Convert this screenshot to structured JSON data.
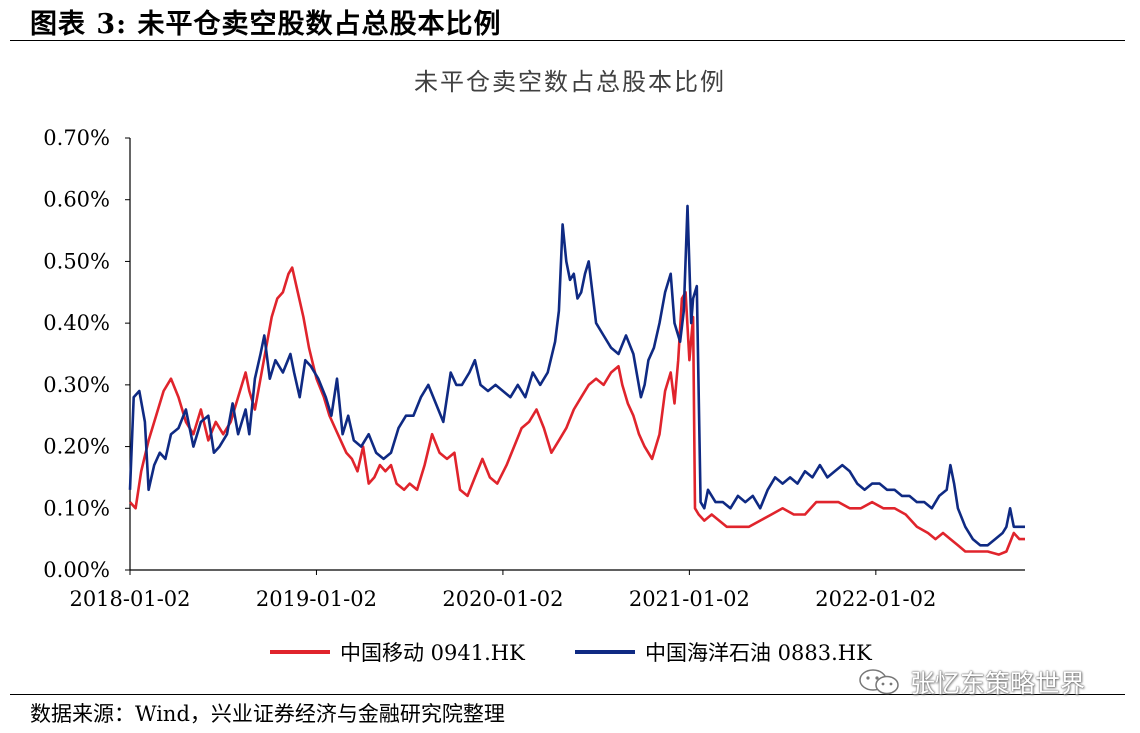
{
  "figure_label": "图表 3:  未平仓卖空股数占总股本比例",
  "source_note": "数据来源：Wind，兴业证券经济与金融研究院整理",
  "watermark": {
    "text": "张忆东策略世界",
    "icon": "wechat-icon"
  },
  "colors": {
    "series1": "#e0242c",
    "series2": "#0f2a83"
  },
  "chart_data": {
    "type": "line",
    "title": "未平仓卖空数占总股本比例",
    "xlabel": "",
    "ylabel": "",
    "x_ticks": [
      "2018-01-02",
      "2019-01-02",
      "2020-01-02",
      "2021-01-02",
      "2022-01-02"
    ],
    "x_range": [
      2018.0,
      2022.8
    ],
    "y_ticks": [
      "0.00%",
      "0.10%",
      "0.20%",
      "0.30%",
      "0.40%",
      "0.50%",
      "0.60%",
      "0.70%"
    ],
    "ylim": [
      0.0,
      0.7
    ],
    "grid": false,
    "legend_position": "bottom",
    "series": [
      {
        "name": "中国移动 0941.HK",
        "points": [
          [
            2018.0,
            0.11
          ],
          [
            2018.03,
            0.1
          ],
          [
            2018.06,
            0.16
          ],
          [
            2018.1,
            0.21
          ],
          [
            2018.14,
            0.25
          ],
          [
            2018.18,
            0.29
          ],
          [
            2018.22,
            0.31
          ],
          [
            2018.26,
            0.28
          ],
          [
            2018.3,
            0.24
          ],
          [
            2018.34,
            0.22
          ],
          [
            2018.38,
            0.26
          ],
          [
            2018.42,
            0.21
          ],
          [
            2018.46,
            0.24
          ],
          [
            2018.5,
            0.22
          ],
          [
            2018.54,
            0.24
          ],
          [
            2018.58,
            0.28
          ],
          [
            2018.62,
            0.32
          ],
          [
            2018.64,
            0.29
          ],
          [
            2018.67,
            0.26
          ],
          [
            2018.7,
            0.31
          ],
          [
            2018.73,
            0.36
          ],
          [
            2018.76,
            0.41
          ],
          [
            2018.79,
            0.44
          ],
          [
            2018.82,
            0.45
          ],
          [
            2018.85,
            0.48
          ],
          [
            2018.87,
            0.49
          ],
          [
            2018.9,
            0.45
          ],
          [
            2018.93,
            0.41
          ],
          [
            2018.96,
            0.36
          ],
          [
            2019.0,
            0.31
          ],
          [
            2019.04,
            0.28
          ],
          [
            2019.07,
            0.25
          ],
          [
            2019.1,
            0.23
          ],
          [
            2019.13,
            0.21
          ],
          [
            2019.16,
            0.19
          ],
          [
            2019.19,
            0.18
          ],
          [
            2019.22,
            0.16
          ],
          [
            2019.25,
            0.2
          ],
          [
            2019.28,
            0.14
          ],
          [
            2019.31,
            0.15
          ],
          [
            2019.34,
            0.17
          ],
          [
            2019.37,
            0.16
          ],
          [
            2019.4,
            0.17
          ],
          [
            2019.43,
            0.14
          ],
          [
            2019.47,
            0.13
          ],
          [
            2019.5,
            0.14
          ],
          [
            2019.54,
            0.13
          ],
          [
            2019.58,
            0.17
          ],
          [
            2019.62,
            0.22
          ],
          [
            2019.66,
            0.19
          ],
          [
            2019.7,
            0.18
          ],
          [
            2019.74,
            0.19
          ],
          [
            2019.77,
            0.13
          ],
          [
            2019.81,
            0.12
          ],
          [
            2019.85,
            0.15
          ],
          [
            2019.89,
            0.18
          ],
          [
            2019.93,
            0.15
          ],
          [
            2019.97,
            0.14
          ],
          [
            2020.02,
            0.17
          ],
          [
            2020.06,
            0.2
          ],
          [
            2020.1,
            0.23
          ],
          [
            2020.14,
            0.24
          ],
          [
            2020.18,
            0.26
          ],
          [
            2020.22,
            0.23
          ],
          [
            2020.26,
            0.19
          ],
          [
            2020.3,
            0.21
          ],
          [
            2020.34,
            0.23
          ],
          [
            2020.38,
            0.26
          ],
          [
            2020.42,
            0.28
          ],
          [
            2020.46,
            0.3
          ],
          [
            2020.5,
            0.31
          ],
          [
            2020.54,
            0.3
          ],
          [
            2020.58,
            0.32
          ],
          [
            2020.62,
            0.33
          ],
          [
            2020.64,
            0.3
          ],
          [
            2020.67,
            0.27
          ],
          [
            2020.7,
            0.25
          ],
          [
            2020.73,
            0.22
          ],
          [
            2020.76,
            0.2
          ],
          [
            2020.8,
            0.18
          ],
          [
            2020.84,
            0.22
          ],
          [
            2020.87,
            0.29
          ],
          [
            2020.9,
            0.32
          ],
          [
            2020.92,
            0.27
          ],
          [
            2020.94,
            0.34
          ],
          [
            2020.96,
            0.44
          ],
          [
            2020.98,
            0.45
          ],
          [
            2021.0,
            0.34
          ],
          [
            2021.02,
            0.41
          ],
          [
            2021.03,
            0.1
          ],
          [
            2021.05,
            0.09
          ],
          [
            2021.08,
            0.08
          ],
          [
            2021.12,
            0.09
          ],
          [
            2021.16,
            0.08
          ],
          [
            2021.2,
            0.07
          ],
          [
            2021.26,
            0.07
          ],
          [
            2021.32,
            0.07
          ],
          [
            2021.38,
            0.08
          ],
          [
            2021.44,
            0.09
          ],
          [
            2021.5,
            0.1
          ],
          [
            2021.56,
            0.09
          ],
          [
            2021.62,
            0.09
          ],
          [
            2021.68,
            0.11
          ],
          [
            2021.74,
            0.11
          ],
          [
            2021.8,
            0.11
          ],
          [
            2021.86,
            0.1
          ],
          [
            2021.92,
            0.1
          ],
          [
            2021.98,
            0.11
          ],
          [
            2022.04,
            0.1
          ],
          [
            2022.1,
            0.1
          ],
          [
            2022.16,
            0.09
          ],
          [
            2022.22,
            0.07
          ],
          [
            2022.28,
            0.06
          ],
          [
            2022.32,
            0.05
          ],
          [
            2022.36,
            0.06
          ],
          [
            2022.4,
            0.05
          ],
          [
            2022.44,
            0.04
          ],
          [
            2022.48,
            0.03
          ],
          [
            2022.54,
            0.03
          ],
          [
            2022.6,
            0.03
          ],
          [
            2022.66,
            0.025
          ],
          [
            2022.7,
            0.03
          ],
          [
            2022.74,
            0.06
          ],
          [
            2022.77,
            0.05
          ],
          [
            2022.8,
            0.05
          ]
        ]
      },
      {
        "name": "中国海洋石油 0883.HK",
        "points": [
          [
            2018.0,
            0.13
          ],
          [
            2018.02,
            0.28
          ],
          [
            2018.05,
            0.29
          ],
          [
            2018.08,
            0.24
          ],
          [
            2018.1,
            0.13
          ],
          [
            2018.13,
            0.17
          ],
          [
            2018.16,
            0.19
          ],
          [
            2018.19,
            0.18
          ],
          [
            2018.22,
            0.22
          ],
          [
            2018.26,
            0.23
          ],
          [
            2018.3,
            0.26
          ],
          [
            2018.34,
            0.2
          ],
          [
            2018.38,
            0.24
          ],
          [
            2018.42,
            0.25
          ],
          [
            2018.45,
            0.19
          ],
          [
            2018.48,
            0.2
          ],
          [
            2018.52,
            0.22
          ],
          [
            2018.55,
            0.27
          ],
          [
            2018.58,
            0.22
          ],
          [
            2018.62,
            0.26
          ],
          [
            2018.64,
            0.22
          ],
          [
            2018.67,
            0.31
          ],
          [
            2018.7,
            0.35
          ],
          [
            2018.72,
            0.38
          ],
          [
            2018.75,
            0.31
          ],
          [
            2018.78,
            0.34
          ],
          [
            2018.82,
            0.32
          ],
          [
            2018.86,
            0.35
          ],
          [
            2018.88,
            0.32
          ],
          [
            2018.91,
            0.28
          ],
          [
            2018.94,
            0.34
          ],
          [
            2018.97,
            0.33
          ],
          [
            2019.01,
            0.31
          ],
          [
            2019.05,
            0.28
          ],
          [
            2019.08,
            0.25
          ],
          [
            2019.11,
            0.31
          ],
          [
            2019.14,
            0.22
          ],
          [
            2019.17,
            0.25
          ],
          [
            2019.2,
            0.21
          ],
          [
            2019.24,
            0.2
          ],
          [
            2019.28,
            0.22
          ],
          [
            2019.32,
            0.19
          ],
          [
            2019.36,
            0.18
          ],
          [
            2019.4,
            0.19
          ],
          [
            2019.44,
            0.23
          ],
          [
            2019.48,
            0.25
          ],
          [
            2019.52,
            0.25
          ],
          [
            2019.56,
            0.28
          ],
          [
            2019.6,
            0.3
          ],
          [
            2019.64,
            0.27
          ],
          [
            2019.68,
            0.24
          ],
          [
            2019.72,
            0.32
          ],
          [
            2019.75,
            0.3
          ],
          [
            2019.78,
            0.3
          ],
          [
            2019.82,
            0.32
          ],
          [
            2019.85,
            0.34
          ],
          [
            2019.88,
            0.3
          ],
          [
            2019.92,
            0.29
          ],
          [
            2019.96,
            0.3
          ],
          [
            2020.0,
            0.29
          ],
          [
            2020.04,
            0.28
          ],
          [
            2020.08,
            0.3
          ],
          [
            2020.12,
            0.28
          ],
          [
            2020.16,
            0.32
          ],
          [
            2020.2,
            0.3
          ],
          [
            2020.24,
            0.32
          ],
          [
            2020.28,
            0.37
          ],
          [
            2020.3,
            0.42
          ],
          [
            2020.32,
            0.56
          ],
          [
            2020.34,
            0.5
          ],
          [
            2020.36,
            0.47
          ],
          [
            2020.38,
            0.48
          ],
          [
            2020.4,
            0.44
          ],
          [
            2020.42,
            0.45
          ],
          [
            2020.44,
            0.48
          ],
          [
            2020.46,
            0.5
          ],
          [
            2020.48,
            0.45
          ],
          [
            2020.5,
            0.4
          ],
          [
            2020.54,
            0.38
          ],
          [
            2020.58,
            0.36
          ],
          [
            2020.62,
            0.35
          ],
          [
            2020.66,
            0.38
          ],
          [
            2020.7,
            0.35
          ],
          [
            2020.74,
            0.28
          ],
          [
            2020.76,
            0.3
          ],
          [
            2020.78,
            0.34
          ],
          [
            2020.81,
            0.36
          ],
          [
            2020.84,
            0.4
          ],
          [
            2020.87,
            0.45
          ],
          [
            2020.9,
            0.48
          ],
          [
            2020.92,
            0.4
          ],
          [
            2020.95,
            0.37
          ],
          [
            2020.97,
            0.42
          ],
          [
            2020.99,
            0.59
          ],
          [
            2021.01,
            0.4
          ],
          [
            2021.02,
            0.44
          ],
          [
            2021.04,
            0.46
          ],
          [
            2021.06,
            0.11
          ],
          [
            2021.08,
            0.1
          ],
          [
            2021.1,
            0.13
          ],
          [
            2021.14,
            0.11
          ],
          [
            2021.18,
            0.11
          ],
          [
            2021.22,
            0.1
          ],
          [
            2021.26,
            0.12
          ],
          [
            2021.3,
            0.11
          ],
          [
            2021.34,
            0.12
          ],
          [
            2021.38,
            0.1
          ],
          [
            2021.42,
            0.13
          ],
          [
            2021.46,
            0.15
          ],
          [
            2021.5,
            0.14
          ],
          [
            2021.54,
            0.15
          ],
          [
            2021.58,
            0.14
          ],
          [
            2021.62,
            0.16
          ],
          [
            2021.66,
            0.15
          ],
          [
            2021.7,
            0.17
          ],
          [
            2021.74,
            0.15
          ],
          [
            2021.78,
            0.16
          ],
          [
            2021.82,
            0.17
          ],
          [
            2021.86,
            0.16
          ],
          [
            2021.9,
            0.14
          ],
          [
            2021.94,
            0.13
          ],
          [
            2021.98,
            0.14
          ],
          [
            2022.02,
            0.14
          ],
          [
            2022.06,
            0.13
          ],
          [
            2022.1,
            0.13
          ],
          [
            2022.14,
            0.12
          ],
          [
            2022.18,
            0.12
          ],
          [
            2022.22,
            0.11
          ],
          [
            2022.26,
            0.11
          ],
          [
            2022.3,
            0.1
          ],
          [
            2022.34,
            0.12
          ],
          [
            2022.38,
            0.13
          ],
          [
            2022.4,
            0.17
          ],
          [
            2022.42,
            0.14
          ],
          [
            2022.44,
            0.1
          ],
          [
            2022.48,
            0.07
          ],
          [
            2022.52,
            0.05
          ],
          [
            2022.56,
            0.04
          ],
          [
            2022.6,
            0.04
          ],
          [
            2022.64,
            0.05
          ],
          [
            2022.68,
            0.06
          ],
          [
            2022.7,
            0.07
          ],
          [
            2022.72,
            0.1
          ],
          [
            2022.74,
            0.07
          ],
          [
            2022.78,
            0.07
          ],
          [
            2022.8,
            0.07
          ]
        ]
      }
    ]
  }
}
